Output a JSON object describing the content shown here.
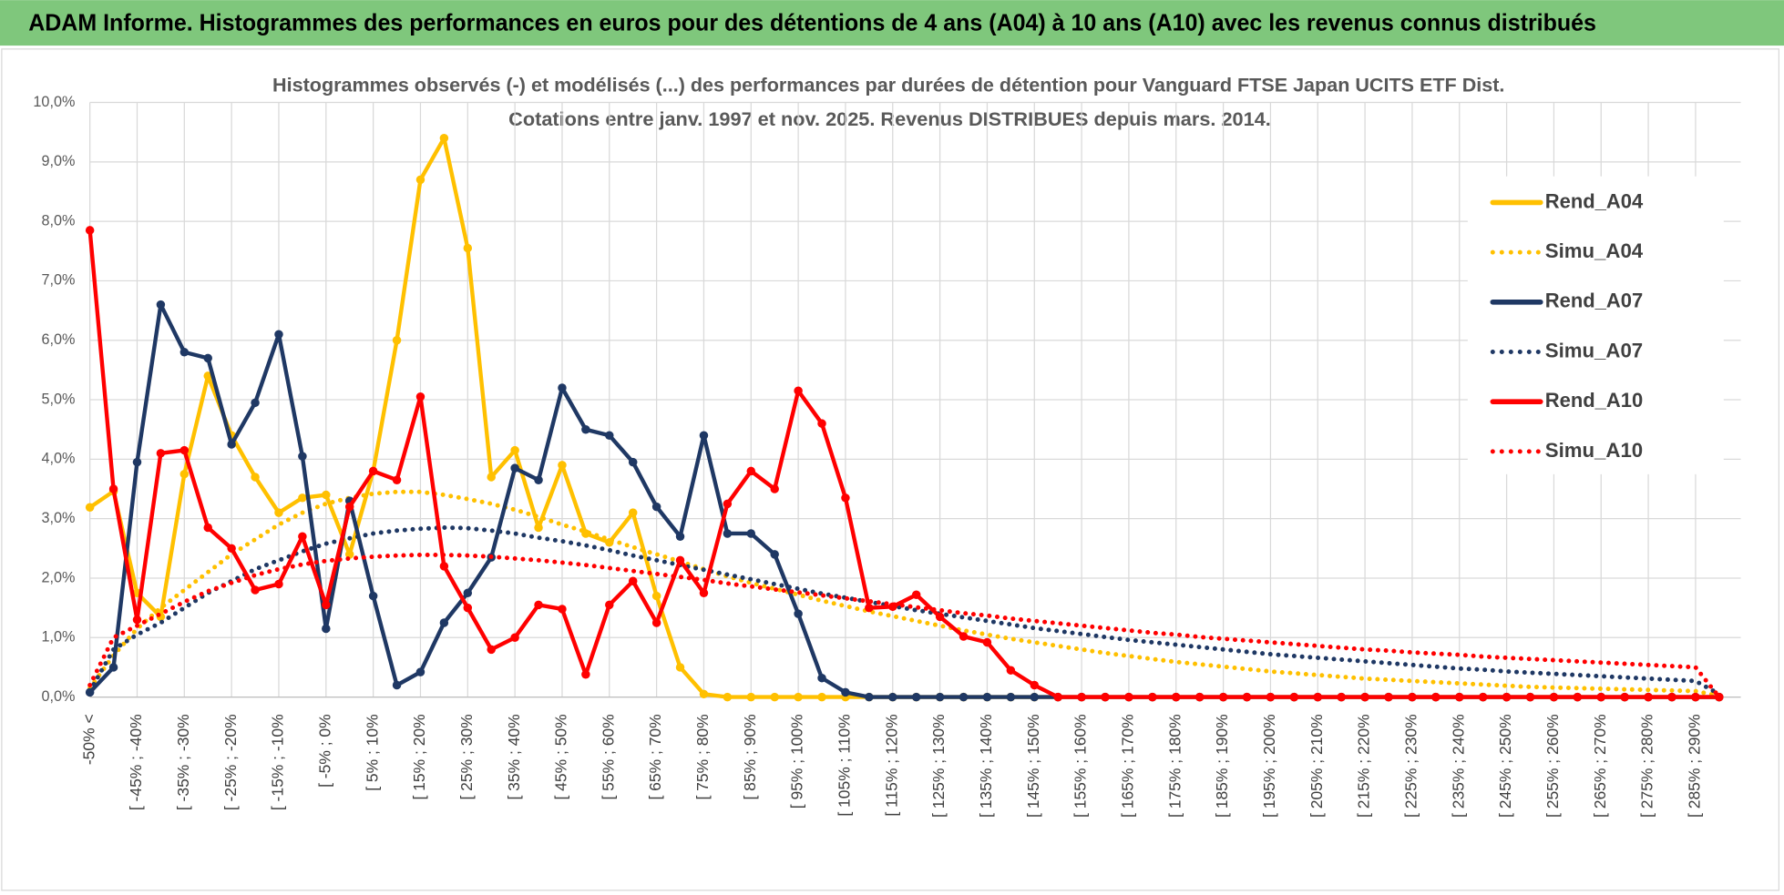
{
  "header": {
    "title": "ADAM Informe. Histogrammes des performances en euros pour des détentions de 4 ans (A04) à 10 ans (A10) avec les revenus connus distribués"
  },
  "chart_data": {
    "type": "line",
    "title": "Histogrammes observés (-) et modélisés (...) des performances par durées de détention pour Vanguard FTSE Japan UCITS ETF Dist.",
    "subtitle": "Cotations entre janv. 1997 et nov. 2025. Revenus DISTRIBUES depuis mars. 2014.",
    "categories": [
      "-50% <",
      null,
      "[ -45% ; -40%",
      null,
      "[ -35% ; -30%",
      null,
      "[ -25% ; -20%",
      null,
      "[ -15% ; -10%",
      null,
      "[ -5% ; 0%",
      null,
      "[ 5% ; 10%",
      null,
      "[ 15% ; 20%",
      null,
      "[ 25% ; 30%",
      null,
      "[ 35% ; 40%",
      null,
      "[ 45% ; 50%",
      null,
      "[ 55% ; 60%",
      null,
      "[ 65% ; 70%",
      null,
      "[ 75% ; 80%",
      null,
      "[ 85% ; 90%",
      null,
      "[ 95% ; 100%",
      null,
      "[ 105% ; 110%",
      null,
      "[ 115% ; 120%",
      null,
      "[ 125% ; 130%",
      null,
      "[ 135% ; 140%",
      null,
      "[ 145% ; 150%",
      null,
      "[ 155% ; 160%",
      null,
      "[ 165% ; 170%",
      null,
      "[ 175% ; 180%",
      null,
      "[ 185% ; 190%",
      null,
      "[ 195% ; 200%",
      null,
      "[ 205% ; 210%",
      null,
      "[ 215% ; 220%",
      null,
      "[ 225% ; 230%",
      null,
      "[ 235% ; 240%",
      null,
      "[ 245% ; 250%",
      null,
      "[ 255% ; 260%",
      null,
      "[ 265% ; 270%",
      null,
      "[ 275% ; 280%",
      null,
      "[ 285% ; 290%",
      null
    ],
    "series": [
      {
        "name": "Rend_A04",
        "color": "#FFC000",
        "dash": "solid",
        "values": [
          3.19,
          3.46,
          1.75,
          1.35,
          3.75,
          5.4,
          4.4,
          3.7,
          3.1,
          3.35,
          3.4,
          2.4,
          3.8,
          6.0,
          8.7,
          9.4,
          7.55,
          3.7,
          4.15,
          2.85,
          3.9,
          2.75,
          2.6,
          3.1,
          1.7,
          0.5,
          0.05,
          0,
          0,
          0,
          0,
          0,
          0,
          0,
          0,
          0,
          0,
          0,
          0,
          0,
          0,
          0,
          0,
          0,
          0,
          0,
          0,
          0,
          0,
          0,
          0,
          0,
          0,
          0,
          0,
          0,
          0,
          0,
          0,
          0,
          0,
          0,
          0,
          0,
          0,
          0,
          0,
          0,
          0,
          0
        ]
      },
      {
        "name": "Simu_A04",
        "color": "#FFC000",
        "dash": "dotted",
        "values": [
          0.15,
          0.7,
          1.15,
          1.5,
          1.8,
          2.1,
          2.4,
          2.65,
          2.9,
          3.1,
          3.25,
          3.35,
          3.42,
          3.45,
          3.45,
          3.4,
          3.33,
          3.25,
          3.15,
          3.03,
          2.9,
          2.78,
          2.65,
          2.52,
          2.4,
          2.28,
          2.15,
          2.03,
          1.92,
          1.82,
          1.72,
          1.62,
          1.53,
          1.44,
          1.36,
          1.28,
          1.2,
          1.12,
          1.05,
          0.98,
          0.92,
          0.86,
          0.8,
          0.74,
          0.69,
          0.64,
          0.59,
          0.55,
          0.51,
          0.47,
          0.43,
          0.4,
          0.37,
          0.34,
          0.31,
          0.29,
          0.27,
          0.25,
          0.23,
          0.21,
          0.19,
          0.17,
          0.16,
          0.15,
          0.14,
          0.13,
          0.12,
          0.11,
          0.1,
          0.02
        ]
      },
      {
        "name": "Rend_A07",
        "color": "#1F3864",
        "dash": "solid",
        "values": [
          0.08,
          0.5,
          3.95,
          6.6,
          5.8,
          5.7,
          4.25,
          4.95,
          6.1,
          4.05,
          1.15,
          3.3,
          1.7,
          0.2,
          0.42,
          1.25,
          1.75,
          2.35,
          3.85,
          3.65,
          5.2,
          4.5,
          4.4,
          3.95,
          3.2,
          2.7,
          4.4,
          2.75,
          2.75,
          2.4,
          1.4,
          0.32,
          0.08,
          0,
          0,
          0,
          0,
          0,
          0,
          0,
          0,
          0,
          0,
          0,
          0,
          0,
          0,
          0,
          0,
          0,
          0,
          0,
          0,
          0,
          0,
          0,
          0,
          0,
          0,
          0,
          0,
          0,
          0,
          0,
          0,
          0,
          0,
          0,
          0,
          0
        ]
      },
      {
        "name": "Simu_A07",
        "color": "#1F3864",
        "dash": "dotted",
        "values": [
          0.1,
          0.8,
          1.05,
          1.25,
          1.5,
          1.75,
          1.95,
          2.15,
          2.3,
          2.45,
          2.58,
          2.67,
          2.75,
          2.8,
          2.83,
          2.85,
          2.84,
          2.8,
          2.75,
          2.68,
          2.62,
          2.55,
          2.47,
          2.38,
          2.3,
          2.22,
          2.14,
          2.06,
          1.98,
          1.9,
          1.82,
          1.74,
          1.67,
          1.6,
          1.53,
          1.46,
          1.4,
          1.34,
          1.28,
          1.22,
          1.16,
          1.11,
          1.06,
          1.01,
          0.96,
          0.92,
          0.88,
          0.84,
          0.8,
          0.76,
          0.72,
          0.69,
          0.66,
          0.63,
          0.6,
          0.57,
          0.54,
          0.51,
          0.48,
          0.46,
          0.43,
          0.41,
          0.39,
          0.37,
          0.35,
          0.33,
          0.31,
          0.29,
          0.27,
          0.05
        ]
      },
      {
        "name": "Rend_A10",
        "color": "#FF0000",
        "dash": "solid",
        "values": [
          7.85,
          3.5,
          1.3,
          4.1,
          4.15,
          2.85,
          2.5,
          1.8,
          1.9,
          2.7,
          1.55,
          3.2,
          3.8,
          3.65,
          5.05,
          2.2,
          1.5,
          0.8,
          1.0,
          1.55,
          1.48,
          0.38,
          1.55,
          1.95,
          1.25,
          2.3,
          1.75,
          3.25,
          3.8,
          3.5,
          5.15,
          4.6,
          3.35,
          1.5,
          1.52,
          1.72,
          1.35,
          1.02,
          0.92,
          0.45,
          0.2,
          0,
          0,
          0,
          0,
          0,
          0,
          0,
          0,
          0,
          0,
          0,
          0,
          0,
          0,
          0,
          0,
          0,
          0,
          0,
          0,
          0,
          0,
          0,
          0,
          0,
          0,
          0,
          0,
          0
        ]
      },
      {
        "name": "Simu_A10",
        "color": "#FF0000",
        "dash": "dotted",
        "values": [
          0.2,
          1.0,
          1.2,
          1.4,
          1.6,
          1.78,
          1.92,
          2.05,
          2.15,
          2.23,
          2.29,
          2.33,
          2.36,
          2.38,
          2.39,
          2.39,
          2.38,
          2.36,
          2.33,
          2.3,
          2.26,
          2.22,
          2.17,
          2.12,
          2.07,
          2.02,
          1.97,
          1.91,
          1.86,
          1.81,
          1.76,
          1.71,
          1.66,
          1.61,
          1.56,
          1.51,
          1.46,
          1.41,
          1.37,
          1.32,
          1.28,
          1.24,
          1.2,
          1.16,
          1.12,
          1.08,
          1.05,
          1.01,
          0.98,
          0.95,
          0.92,
          0.89,
          0.86,
          0.83,
          0.8,
          0.78,
          0.75,
          0.73,
          0.71,
          0.68,
          0.66,
          0.64,
          0.62,
          0.6,
          0.58,
          0.56,
          0.54,
          0.52,
          0.5,
          0.0
        ]
      }
    ],
    "ylim": [
      0,
      10
    ],
    "yticks": [
      {
        "value": 0,
        "label": "0,0%"
      },
      {
        "value": 1,
        "label": "1,0%"
      },
      {
        "value": 2,
        "label": "2,0%"
      },
      {
        "value": 3,
        "label": "3,0%"
      },
      {
        "value": 4,
        "label": "4,0%"
      },
      {
        "value": 5,
        "label": "5,0%"
      },
      {
        "value": 6,
        "label": "6,0%"
      },
      {
        "value": 7,
        "label": "7,0%"
      },
      {
        "value": 8,
        "label": "8,0%"
      },
      {
        "value": 9,
        "label": "9,0%"
      },
      {
        "value": 10,
        "label": "10,0%"
      }
    ],
    "grid": true,
    "legend": "right"
  }
}
